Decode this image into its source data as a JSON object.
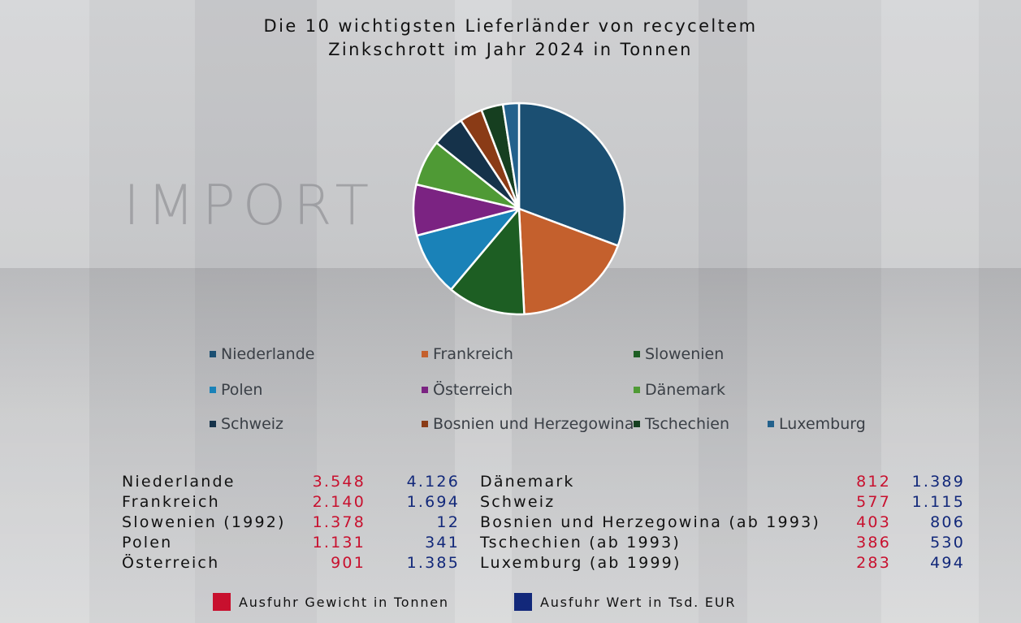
{
  "title_line1": "Die 10 wichtigsten Lieferländer von recyceltem",
  "title_line2": "Zinkschrott im Jahr 2024 in Tonnen",
  "watermark": "IMPORT",
  "chart_data": {
    "type": "pie",
    "title": "Die 10 wichtigsten Lieferländer von recyceltem Zinkschrott im Jahr 2024 in Tonnen",
    "categories": [
      "Niederlande",
      "Frankreich",
      "Slowenien",
      "Polen",
      "Österreich",
      "Dänemark",
      "Schweiz",
      "Bosnien und Herzegowina",
      "Tschechien",
      "Luxemburg"
    ],
    "values": [
      3548,
      2140,
      1378,
      1131,
      901,
      812,
      577,
      403,
      386,
      283
    ],
    "colors": [
      "#1b4f72",
      "#c4602d",
      "#1d5e23",
      "#1a82b8",
      "#7b2382",
      "#4f9a35",
      "#15324a",
      "#8a3b16",
      "#163f20",
      "#23618c"
    ],
    "legend_position": "bottom"
  },
  "table": {
    "left": [
      {
        "name": "Niederlande",
        "weight": "3.548",
        "value": "4.126"
      },
      {
        "name": "Frankreich",
        "weight": "2.140",
        "value": "1.694"
      },
      {
        "name": "Slowenien (1992)",
        "weight": "1.378",
        "value": "12"
      },
      {
        "name": "Polen",
        "weight": "1.131",
        "value": "341"
      },
      {
        "name": "Österreich",
        "weight": "901",
        "value": "1.385"
      }
    ],
    "right": [
      {
        "name": "Dänemark",
        "weight": "812",
        "value": "1.389"
      },
      {
        "name": "Schweiz",
        "weight": "577",
        "value": "1.115"
      },
      {
        "name": "Bosnien und Herzegowina (ab 1993)",
        "weight": "403",
        "value": "806"
      },
      {
        "name": "Tschechien (ab 1993)",
        "weight": "386",
        "value": "530"
      },
      {
        "name": "Luxemburg (ab 1999)",
        "weight": "283",
        "value": "494"
      }
    ]
  },
  "key": {
    "weight_label": "Ausfuhr Gewicht in Tonnen",
    "weight_color": "#c8102e",
    "value_label": "Ausfuhr Wert in Tsd. EUR",
    "value_color": "#12287a"
  }
}
